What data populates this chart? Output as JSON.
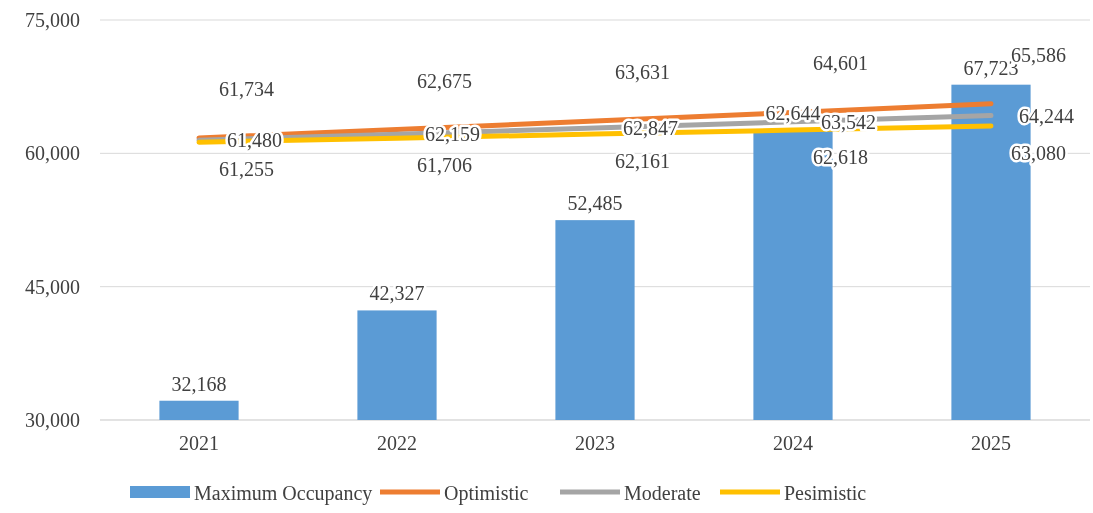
{
  "chart_data": {
    "type": "bar",
    "categories": [
      "2021",
      "2022",
      "2023",
      "2024",
      "2025"
    ],
    "series": [
      {
        "name": "Maximum Occupancy",
        "color": "#5b9bd5",
        "values": [
          32168,
          42327,
          52485,
          62644,
          67723
        ],
        "value_labels": [
          "32,168",
          "42,327",
          "52,485",
          "62,644",
          "67,723"
        ]
      },
      {
        "name": "Optimistic",
        "type": "line",
        "color": "#ed7d31",
        "values": [
          61734,
          62675,
          63631,
          64601,
          65586
        ],
        "value_labels": [
          "61,734",
          "62,675",
          "63,631",
          "64,601",
          "65,586"
        ]
      },
      {
        "name": "Moderate",
        "type": "line",
        "color": "#a5a5a5",
        "values": [
          61480,
          62159,
          62847,
          63542,
          64244
        ],
        "value_labels": [
          "61,480",
          "62,159",
          "62,847",
          "63,542",
          "64,244"
        ]
      },
      {
        "name": "Pesimistic",
        "type": "line",
        "color": "#ffc000",
        "values": [
          61255,
          61706,
          62161,
          62618,
          63080
        ],
        "value_labels": [
          "61,255",
          "61,706",
          "62,161",
          "62,618",
          "63,080"
        ]
      }
    ],
    "ylim": [
      30000,
      75000
    ],
    "yticks": [
      {
        "value": 30000,
        "label": "30,000"
      },
      {
        "value": 45000,
        "label": "45,000"
      },
      {
        "value": 60000,
        "label": "60,000"
      },
      {
        "value": 75000,
        "label": "75,000"
      }
    ],
    "grid": "y",
    "legend": "bottom",
    "marker": "none"
  }
}
